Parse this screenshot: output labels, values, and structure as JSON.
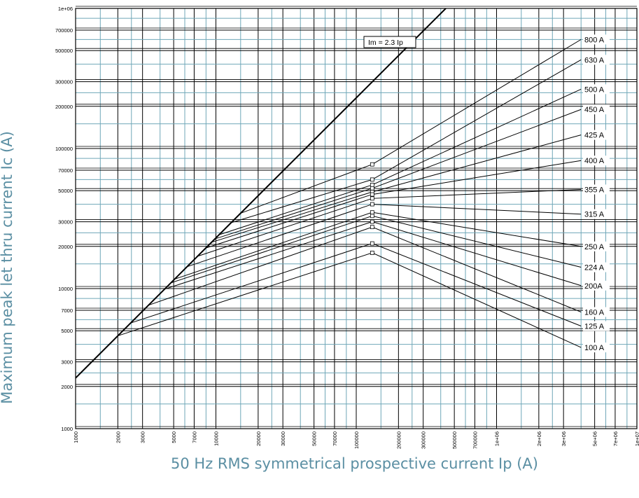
{
  "chart_data": {
    "type": "line",
    "title": "",
    "xlabel": "50 Hz RMS symmetrical prospective current Ip (A)",
    "ylabel": "Maximum peak let thru current Ic (A)",
    "xscale": "log",
    "yscale": "log",
    "xlim": [
      1000,
      10000000
    ],
    "ylim": [
      1000,
      1000000
    ],
    "x_tick_labels": [
      "1000",
      "2000",
      "3000",
      "5000",
      "7000",
      "10000",
      "20000",
      "30000",
      "50000",
      "70000",
      "100000",
      "200000",
      "300000",
      "500000",
      "700000",
      "1e+06",
      "2e+06",
      "3e+06",
      "5e+06",
      "7e+06",
      "1e+07"
    ],
    "y_tick_labels": [
      "1000",
      "2000",
      "3000",
      "5000",
      "7000",
      "10000",
      "20000",
      "30000",
      "50000",
      "70000",
      "100000",
      "200000",
      "300000",
      "500000",
      "700000",
      "1e+06"
    ],
    "grid": true,
    "reference_line": {
      "label": "Im = 2.3 Ip",
      "factor": 2.3
    },
    "series": [
      {
        "name": "800 A",
        "points": [
          [
            15000,
            34500
          ],
          [
            130000,
            77000
          ],
          [
            4000000,
            600000
          ]
        ]
      },
      {
        "name": "630 A",
        "points": [
          [
            12800,
            29500
          ],
          [
            130000,
            60000
          ],
          [
            4000000,
            430000
          ]
        ]
      },
      {
        "name": "500 A",
        "points": [
          [
            10500,
            24200
          ],
          [
            130000,
            55000
          ],
          [
            4000000,
            265000
          ]
        ]
      },
      {
        "name": "450 A",
        "points": [
          [
            9800,
            22600
          ],
          [
            130000,
            52000
          ],
          [
            4000000,
            190000
          ]
        ]
      },
      {
        "name": "425 A",
        "points": [
          [
            9300,
            21400
          ],
          [
            130000,
            49000
          ],
          [
            4000000,
            125000
          ]
        ]
      },
      {
        "name": "400 A",
        "points": [
          [
            8500,
            19500
          ],
          [
            130000,
            47000
          ],
          [
            4000000,
            82000
          ]
        ]
      },
      {
        "name": "355 A",
        "points": [
          [
            7400,
            17000
          ],
          [
            130000,
            44000
          ],
          [
            4000000,
            51000
          ]
        ]
      },
      {
        "name": "315 A",
        "points": [
          [
            6200,
            14300
          ],
          [
            130000,
            40000
          ],
          [
            4000000,
            34000
          ]
        ]
      },
      {
        "name": "250 A",
        "points": [
          [
            5100,
            11700
          ],
          [
            130000,
            35000
          ],
          [
            4000000,
            20000
          ]
        ]
      },
      {
        "name": "224 A",
        "points": [
          [
            4800,
            11000
          ],
          [
            130000,
            33000
          ],
          [
            4000000,
            14200
          ]
        ]
      },
      {
        "name": "200A",
        "points": [
          [
            4300,
            9900
          ],
          [
            130000,
            30000
          ],
          [
            4000000,
            10500
          ]
        ]
      },
      {
        "name": "160 A",
        "points": [
          [
            3300,
            7600
          ],
          [
            130000,
            27500
          ],
          [
            4000000,
            6800
          ]
        ]
      },
      {
        "name": "125 A",
        "points": [
          [
            2500,
            5700
          ],
          [
            130000,
            21000
          ],
          [
            4000000,
            5400
          ]
        ]
      },
      {
        "name": "100 A",
        "points": [
          [
            2000,
            4600
          ],
          [
            130000,
            18000
          ],
          [
            4000000,
            3800
          ]
        ]
      }
    ]
  }
}
